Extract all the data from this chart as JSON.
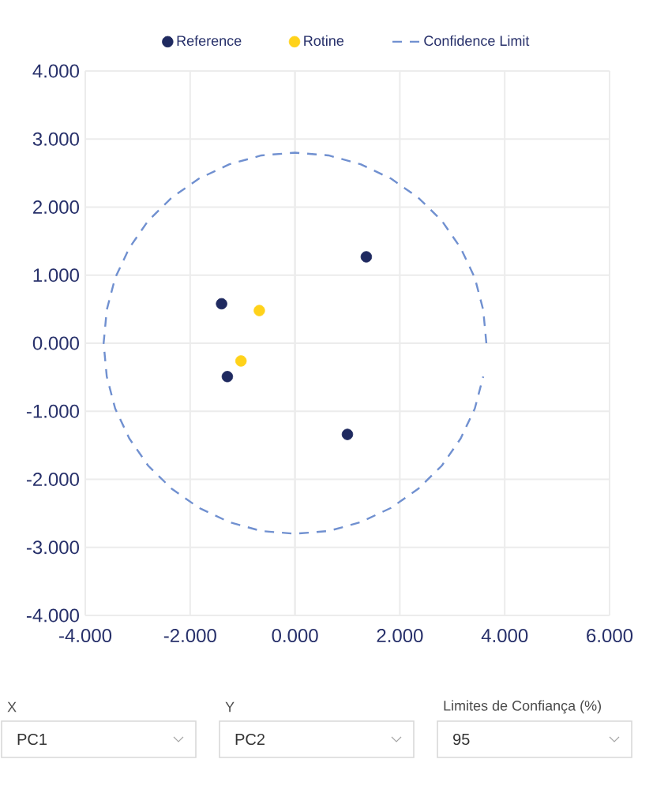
{
  "chart_data": {
    "type": "scatter",
    "xlim": [
      -4,
      6
    ],
    "ylim": [
      -4,
      4
    ],
    "xticks": [
      {
        "value": -4,
        "label": "-4.000"
      },
      {
        "value": -2,
        "label": "-2.000"
      },
      {
        "value": 0,
        "label": "0.000"
      },
      {
        "value": 2,
        "label": "2.000"
      },
      {
        "value": 4,
        "label": "4.000"
      },
      {
        "value": 6,
        "label": "6.000"
      }
    ],
    "yticks": [
      {
        "value": -4,
        "label": "-4.000"
      },
      {
        "value": -3,
        "label": "-3.000"
      },
      {
        "value": -2,
        "label": "-2.000"
      },
      {
        "value": -1,
        "label": "-1.000"
      },
      {
        "value": 0,
        "label": "0.000"
      },
      {
        "value": 1,
        "label": "1.000"
      },
      {
        "value": 2,
        "label": "2.000"
      },
      {
        "value": 3,
        "label": "3.000"
      },
      {
        "value": 4,
        "label": "4.000"
      }
    ],
    "grid": true,
    "legend": "top",
    "series": [
      {
        "name": "Reference",
        "color": "#1f2a60",
        "marker": "circle",
        "x": [
          1.36,
          -1.4,
          -1.29,
          1.0
        ],
        "values": [
          1.27,
          0.58,
          -0.49,
          -1.34
        ]
      },
      {
        "name": "Rotine",
        "color": "#ffd21a",
        "marker": "circle",
        "x": [
          -0.68,
          -1.03
        ],
        "values": [
          0.48,
          -0.26
        ]
      },
      {
        "name": "Confidence Limit",
        "type": "line",
        "line_style": "dashed",
        "marker": "none",
        "color": "#7090d0",
        "x": [
          3.65,
          3.59,
          3.43,
          3.16,
          2.8,
          2.35,
          1.83,
          1.25,
          0.64,
          0,
          -0.64,
          -1.25,
          -1.83,
          -2.35,
          -2.8,
          -3.16,
          -3.43,
          -3.59,
          -3.65,
          -3.59,
          -3.43,
          -3.16,
          -2.8,
          -2.35,
          -1.83,
          -1.25,
          -0.64,
          0,
          0.64,
          1.25,
          1.83,
          2.35,
          2.8,
          3.16,
          3.43,
          3.59
        ],
        "values": [
          0,
          0.49,
          0.96,
          1.4,
          1.8,
          2.14,
          2.42,
          2.63,
          2.76,
          2.8,
          2.76,
          2.63,
          2.42,
          2.14,
          1.8,
          1.4,
          0.96,
          0.49,
          0,
          -0.49,
          -0.96,
          -1.4,
          -1.8,
          -2.14,
          -2.42,
          -2.63,
          -2.76,
          -2.8,
          -2.76,
          -2.63,
          -2.42,
          -2.14,
          -1.8,
          -1.4,
          -0.96,
          -0.49
        ]
      }
    ],
    "annotations": [
      "X",
      "PC1",
      "Y",
      "PC2",
      "Limites de Confiança (%)",
      "95"
    ]
  }
}
